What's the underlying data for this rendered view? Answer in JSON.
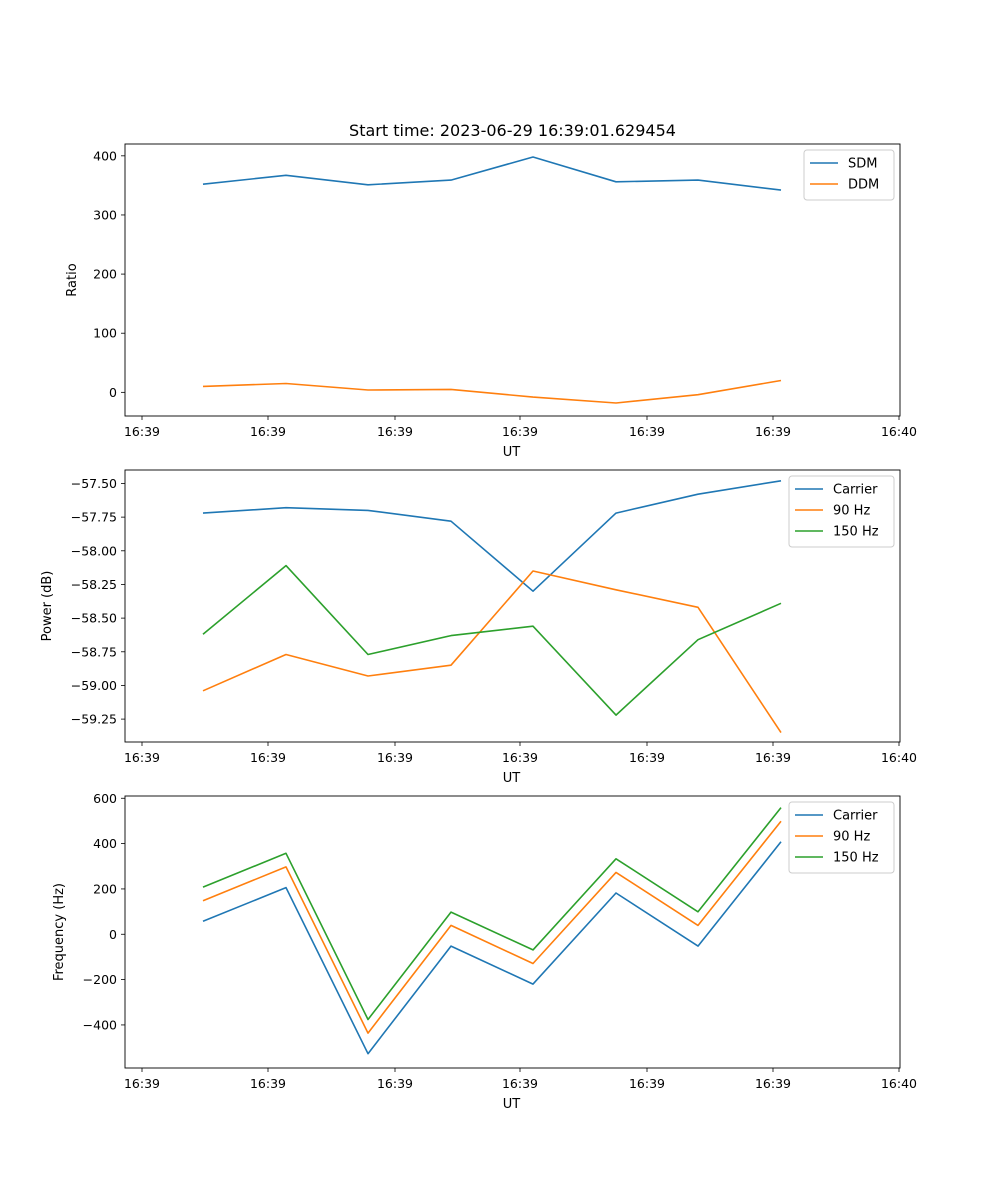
{
  "chart_data": [
    {
      "type": "line",
      "title": "Start time: 2023-06-29 16:39:01.629454",
      "xlabel": "UT",
      "ylabel": "Ratio",
      "xticks": [
        "16:39",
        "16:39",
        "16:39",
        "16:39",
        "16:39",
        "16:39",
        "16:40"
      ],
      "yticks": [
        "0",
        "100",
        "200",
        "300",
        "400"
      ],
      "ylim": [
        -40,
        420
      ],
      "legend": "top-right",
      "grid": false,
      "series": [
        {
          "name": "SDM",
          "color": "#1f77b4",
          "values": [
            352,
            367,
            351,
            359,
            398,
            356,
            359,
            342
          ]
        },
        {
          "name": "DDM",
          "color": "#ff7f0e",
          "values": [
            10,
            15,
            4,
            5,
            -8,
            -18,
            -4,
            20
          ]
        }
      ]
    },
    {
      "type": "line",
      "title": "",
      "xlabel": "UT",
      "ylabel": "Power (dB)",
      "xticks": [
        "16:39",
        "16:39",
        "16:39",
        "16:39",
        "16:39",
        "16:39",
        "16:40"
      ],
      "yticks": [
        "−57.50",
        "−57.75",
        "−58.00",
        "−58.25",
        "−58.50",
        "−58.75",
        "−59.00",
        "−59.25"
      ],
      "ylim": [
        -59.42,
        -57.4
      ],
      "legend": "top-right",
      "grid": false,
      "series": [
        {
          "name": "Carrier",
          "color": "#1f77b4",
          "values": [
            -57.72,
            -57.68,
            -57.7,
            -57.78,
            -58.3,
            -57.72,
            -57.58,
            -57.48
          ]
        },
        {
          "name": "90 Hz",
          "color": "#ff7f0e",
          "values": [
            -59.04,
            -58.77,
            -58.93,
            -58.85,
            -58.15,
            -58.29,
            -58.42,
            -59.35
          ]
        },
        {
          "name": "150 Hz",
          "color": "#2ca02c",
          "values": [
            -58.62,
            -58.11,
            -58.77,
            -58.63,
            -58.56,
            -59.22,
            -58.66,
            -58.39
          ]
        }
      ]
    },
    {
      "type": "line",
      "title": "",
      "xlabel": "UT",
      "ylabel": "Frequency (Hz)",
      "xticks": [
        "16:39",
        "16:39",
        "16:39",
        "16:39",
        "16:39",
        "16:39",
        "16:40"
      ],
      "yticks": [
        "−400",
        "−200",
        "0",
        "200",
        "400",
        "600"
      ],
      "ylim": [
        -590,
        610
      ],
      "legend": "top-right",
      "grid": false,
      "series": [
        {
          "name": "Carrier",
          "color": "#1f77b4",
          "values": [
            57,
            206,
            -527,
            -52,
            -220,
            182,
            -52,
            408
          ]
        },
        {
          "name": "90 Hz",
          "color": "#ff7f0e",
          "values": [
            148,
            297,
            -436,
            39,
            -129,
            273,
            39,
            499
          ]
        },
        {
          "name": "150 Hz",
          "color": "#2ca02c",
          "values": [
            208,
            357,
            -376,
            98,
            -69,
            333,
            99,
            559
          ]
        }
      ]
    }
  ]
}
